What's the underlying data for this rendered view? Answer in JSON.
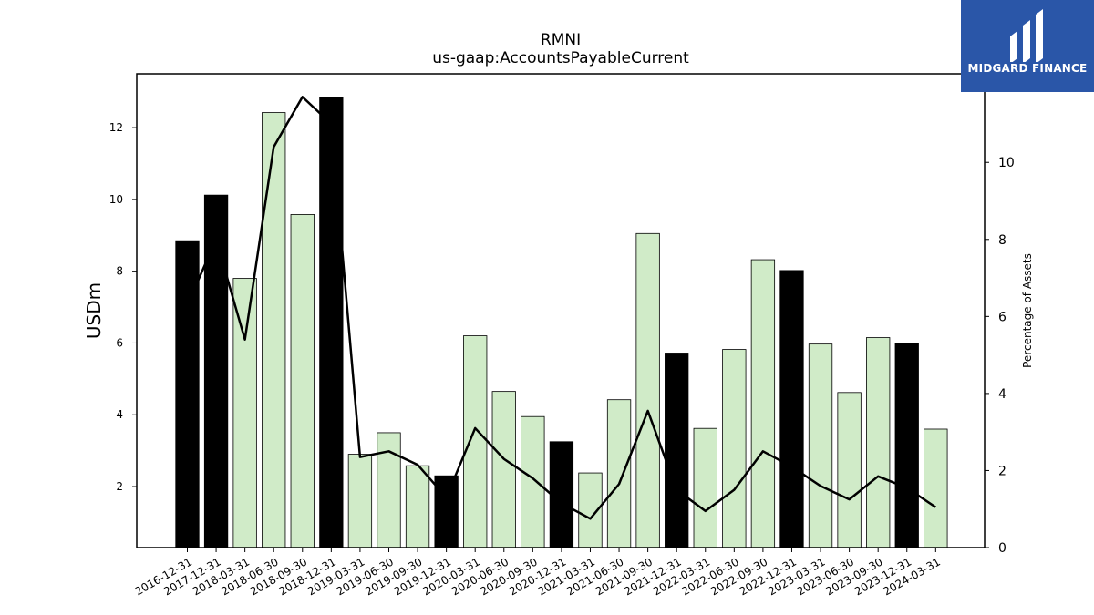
{
  "chart_data": {
    "type": "bar",
    "title": "RMNI",
    "subtitle": "us-gaap:AccountsPayableCurrent",
    "ylabel": "USDm",
    "y2label": "Percentage of Assets",
    "ylim": [
      0.3,
      13.5
    ],
    "y2lim": [
      0,
      12.3
    ],
    "yticks": [
      2,
      4,
      6,
      8,
      10,
      12
    ],
    "y2ticks": [
      0,
      2,
      4,
      6,
      8,
      10
    ],
    "categories": [
      "2016-12-31",
      "2017-12-31",
      "2018-03-31",
      "2018-06-30",
      "2018-09-30",
      "2018-12-31",
      "2019-03-31",
      "2019-06-30",
      "2019-09-30",
      "2019-12-31",
      "2020-03-31",
      "2020-06-30",
      "2020-09-30",
      "2020-12-31",
      "2021-03-31",
      "2021-06-30",
      "2021-09-30",
      "2021-12-31",
      "2022-03-31",
      "2022-06-30",
      "2022-09-30",
      "2022-12-31",
      "2023-03-31",
      "2023-06-30",
      "2023-09-30",
      "2023-12-31",
      "2024-03-31"
    ],
    "series": [
      {
        "type": "bar",
        "values": [
          8.85,
          10.12,
          7.8,
          12.42,
          9.58,
          12.85,
          2.9,
          3.5,
          2.58,
          2.3,
          6.2,
          4.65,
          3.95,
          3.25,
          2.38,
          4.42,
          9.05,
          5.72,
          3.62,
          5.82,
          8.32,
          8.02,
          5.97,
          4.62,
          6.15,
          6.0,
          3.6
        ],
        "highlight": [
          true,
          true,
          false,
          false,
          false,
          true,
          false,
          false,
          false,
          true,
          false,
          false,
          false,
          true,
          false,
          false,
          false,
          true,
          false,
          false,
          false,
          true,
          false,
          false,
          false,
          true,
          false
        ]
      },
      {
        "type": "line",
        "axis": "right",
        "values": [
          6.3,
          8.0,
          5.4,
          10.4,
          11.7,
          11.0,
          2.35,
          2.5,
          2.15,
          1.3,
          3.1,
          2.3,
          1.8,
          1.15,
          0.75,
          1.65,
          3.55,
          1.5,
          0.95,
          1.5,
          2.5,
          2.1,
          1.6,
          1.25,
          1.85,
          1.55,
          1.05
        ]
      }
    ],
    "colors": {
      "highlight_bar": "#000000",
      "bar": "#d0ebc8",
      "bar_edge": "#000000",
      "line": "#000000"
    },
    "grid": false,
    "legend": "none"
  },
  "logo": {
    "text": "MIDGARD FINANCE",
    "icon": "midgard-logo-icon",
    "background": "#2a56a8"
  }
}
